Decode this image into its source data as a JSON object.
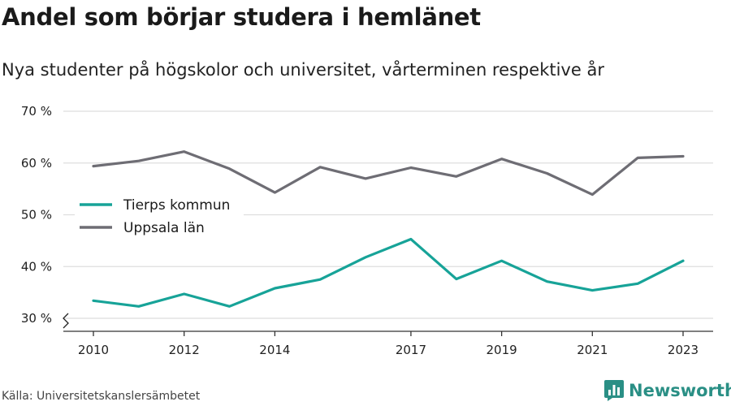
{
  "title": "Andel som börjar studera i hemlänet",
  "subtitle": "Nya studenter på högskolor och universitet, vårterminen respektive år",
  "source": "Källa: Universitetskanslersämbetet",
  "brand": {
    "name": "Newsworthy",
    "icon": "bar-chart-logo-icon",
    "color": "#2a8f85"
  },
  "chart_data": {
    "type": "line",
    "x": [
      2010,
      2011,
      2012,
      2013,
      2014,
      2015,
      2016,
      2017,
      2018,
      2019,
      2020,
      2021,
      2022,
      2023
    ],
    "x_tick_labels": [
      "2010",
      "2012",
      "2014",
      "2017",
      "2019",
      "2021",
      "2023"
    ],
    "y_tick_labels": [
      "30 %",
      "40 %",
      "50 %",
      "60 %",
      "70 %"
    ],
    "ylim": [
      30,
      70
    ],
    "y_axis_break": true,
    "grid": "horizontal",
    "legend_position": "left",
    "series": [
      {
        "name": "Tierps kommun",
        "color": "#17a398",
        "values": [
          33.4,
          32.3,
          34.7,
          32.3,
          35.8,
          37.5,
          41.8,
          45.3,
          37.6,
          41.1,
          37.1,
          35.4,
          36.7,
          41.1
        ]
      },
      {
        "name": "Uppsala län",
        "color": "#6e6d74",
        "values": [
          59.4,
          60.4,
          62.2,
          58.9,
          54.3,
          59.2,
          57.0,
          59.1,
          57.4,
          60.8,
          58.0,
          53.9,
          61.0,
          61.3
        ]
      }
    ]
  }
}
